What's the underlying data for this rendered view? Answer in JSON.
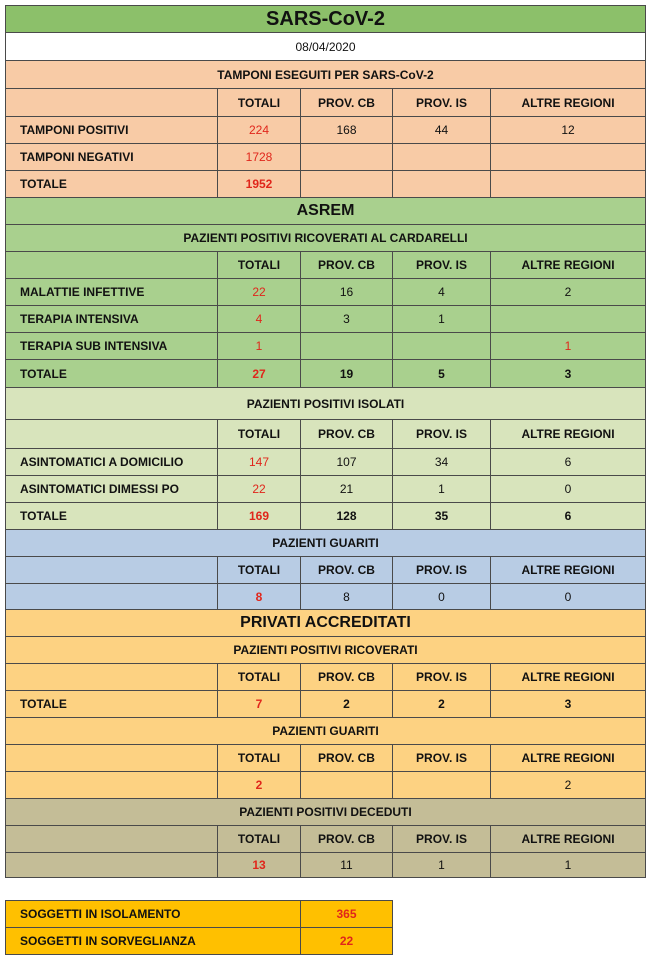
{
  "title": "SARS-CoV-2",
  "date": "08/04/2020",
  "tamponi": {
    "heading": "TAMPONI ESEGUITI PER SARS-CoV-2",
    "columns": [
      "TOTALI",
      "PROV. CB",
      "PROV. IS",
      "ALTRE REGIONI"
    ],
    "rows": [
      {
        "label": "TAMPONI POSITIVI",
        "values": [
          224,
          168,
          44,
          12
        ]
      },
      {
        "label": "TAMPONI NEGATIVI",
        "values": [
          1728,
          null,
          null,
          null
        ]
      },
      {
        "label": "TOTALE",
        "values": [
          1952,
          null,
          null,
          null
        ]
      }
    ]
  },
  "asrem": {
    "title": "ASREM",
    "ricoverati": {
      "heading": "PAZIENTI POSITIVI RICOVERATI AL CARDARELLI",
      "columns": [
        "TOTALI",
        "PROV. CB",
        "PROV. IS",
        "ALTRE REGIONI"
      ],
      "rows": [
        {
          "label": "MALATTIE INFETTIVE",
          "values": [
            22,
            16,
            4,
            2
          ]
        },
        {
          "label": "TERAPIA INTENSIVA",
          "values": [
            4,
            3,
            1,
            null
          ]
        },
        {
          "label": "TERAPIA SUB INTENSIVA",
          "values": [
            1,
            null,
            null,
            1
          ]
        },
        {
          "label": "TOTALE",
          "values": [
            27,
            19,
            5,
            3
          ]
        }
      ]
    },
    "isolati": {
      "heading": "PAZIENTI POSITIVI ISOLATI",
      "columns": [
        "TOTALI",
        "PROV. CB",
        "PROV. IS",
        "ALTRE REGIONI"
      ],
      "rows": [
        {
          "label": "ASINTOMATICI A DOMICILIO",
          "values": [
            147,
            107,
            34,
            6
          ]
        },
        {
          "label": "ASINTOMATICI DIMESSI PO",
          "values": [
            22,
            21,
            1,
            0
          ]
        },
        {
          "label": "TOTALE",
          "values": [
            169,
            128,
            35,
            6
          ]
        }
      ]
    },
    "guariti": {
      "heading": "PAZIENTI GUARITI",
      "columns": [
        "TOTALI",
        "PROV. CB",
        "PROV. IS",
        "ALTRE REGIONI"
      ],
      "rows": [
        {
          "label": null,
          "values": [
            8,
            8,
            0,
            0
          ]
        }
      ]
    }
  },
  "privati": {
    "title": "PRIVATI ACCREDITATI",
    "ricoverati": {
      "heading": "PAZIENTI POSITIVI RICOVERATI",
      "columns": [
        "TOTALI",
        "PROV. CB",
        "PROV. IS",
        "ALTRE REGIONI"
      ],
      "rows": [
        {
          "label": "TOTALE",
          "values": [
            7,
            2,
            2,
            3
          ]
        }
      ]
    },
    "guariti": {
      "heading": "PAZIENTI GUARITI",
      "columns": [
        "TOTALI",
        "PROV. CB",
        "PROV. IS",
        "ALTRE REGIONI"
      ],
      "rows": [
        {
          "label": null,
          "values": [
            2,
            null,
            null,
            2
          ]
        }
      ]
    }
  },
  "deceduti": {
    "heading": "PAZIENTI POSITIVI DECEDUTI",
    "columns": [
      "TOTALI",
      "PROV. CB",
      "PROV. IS",
      "ALTRE REGIONI"
    ],
    "rows": [
      {
        "label": null,
        "values": [
          13,
          11,
          1,
          1
        ]
      }
    ]
  },
  "summary": [
    {
      "label": "SOGGETTI IN ISOLAMENTO",
      "value": 365
    },
    {
      "label": "SOGGETTI IN SORVEGLIANZA",
      "value": 22
    }
  ]
}
